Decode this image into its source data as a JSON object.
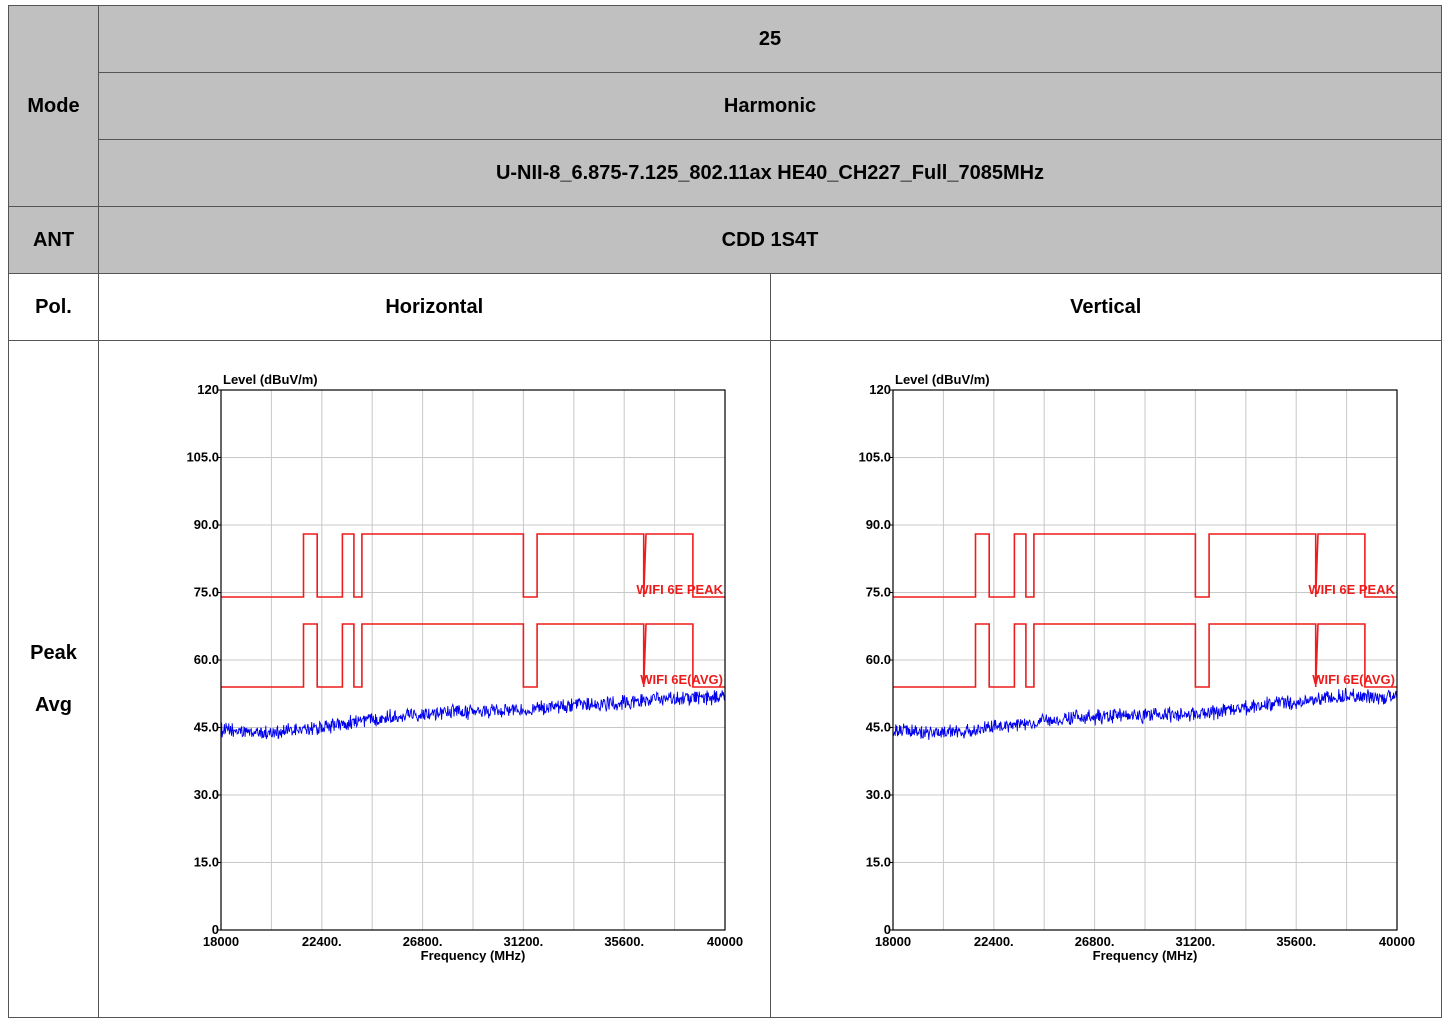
{
  "header": {
    "mode_label": "Mode",
    "mode_row1": "25",
    "mode_row2": "Harmonic",
    "mode_row3": "U-NII-8_6.875-7.125_802.11ax HE40_CH227_Full_7085MHz",
    "ant_label": "ANT",
    "ant_value": "CDD 1S4T",
    "pol_label": "Pol.",
    "pol_horizontal": "Horizontal",
    "pol_vertical": "Vertical",
    "detector_peak": "Peak",
    "detector_avg": "Avg"
  },
  "colors": {
    "limit_line": "#ee1c1c",
    "trace": "#0000ee",
    "grid": "#c8c8c8",
    "header_gray": "#c0c0c0"
  },
  "chart_data": [
    {
      "type": "line",
      "ylabel": "Level (dBuV/m)",
      "xlabel": "Frequency (MHz)",
      "xlim": [
        18000,
        40000
      ],
      "ylim": [
        0,
        120
      ],
      "x_tick_labels": [
        "18000",
        "22400.",
        "26800.",
        "31200.",
        "35600.",
        "40000"
      ],
      "y_tick_labels": [
        "0",
        "15.0",
        "30.0",
        "45.0",
        "60.0",
        "75.0",
        "90.0",
        "105.0",
        "120"
      ],
      "grid": true,
      "series": [
        {
          "name": "WIFI 6E PEAK",
          "kind": "limit",
          "x": [
            18000,
            21600,
            21600,
            22200,
            22200,
            23300,
            23300,
            23800,
            23800,
            24150,
            24150,
            24550,
            24550,
            31200,
            31200,
            31800,
            31800,
            36450,
            36450,
            36550,
            36550,
            38600,
            38600,
            40000
          ],
          "y": [
            74,
            74,
            88,
            88,
            74,
            74,
            88,
            88,
            74,
            74,
            88,
            88,
            88,
            88,
            74,
            74,
            88,
            88,
            74,
            88,
            88,
            88,
            74,
            74
          ]
        },
        {
          "name": "WIFI 6E(AVG)",
          "kind": "limit",
          "x": [
            18000,
            21600,
            21600,
            22200,
            22200,
            23300,
            23300,
            23800,
            23800,
            24150,
            24150,
            24550,
            24550,
            31200,
            31200,
            31800,
            31800,
            36450,
            36450,
            36550,
            36550,
            38600,
            38600,
            40000
          ],
          "y": [
            54,
            54,
            68,
            68,
            54,
            54,
            68,
            68,
            54,
            54,
            68,
            68,
            68,
            68,
            54,
            54,
            68,
            68,
            54,
            68,
            68,
            68,
            54,
            54
          ]
        },
        {
          "kind": "trace",
          "x": [
            18000,
            19000,
            20000,
            21000,
            22000,
            23000,
            24000,
            25000,
            26000,
            27000,
            28000,
            29000,
            30000,
            31000,
            32000,
            33000,
            34000,
            35000,
            36000,
            37000,
            38000,
            39000,
            40000
          ],
          "y": [
            44.5,
            44,
            43.8,
            44.2,
            44.8,
            45.5,
            46.5,
            47.2,
            47.8,
            48.2,
            48.5,
            48.3,
            48.8,
            48.9,
            49.3,
            49.6,
            50,
            50.3,
            50.8,
            51.2,
            51.5,
            51.6,
            51.8
          ]
        }
      ]
    },
    {
      "type": "line",
      "ylabel": "Level (dBuV/m)",
      "xlabel": "Frequency (MHz)",
      "xlim": [
        18000,
        40000
      ],
      "ylim": [
        0,
        120
      ],
      "x_tick_labels": [
        "18000",
        "22400.",
        "26800.",
        "31200.",
        "35600.",
        "40000"
      ],
      "y_tick_labels": [
        "0",
        "15.0",
        "30.0",
        "45.0",
        "60.0",
        "75.0",
        "90.0",
        "105.0",
        "120"
      ],
      "grid": true,
      "series": [
        {
          "name": "WIFI 6E PEAK",
          "kind": "limit",
          "x": [
            18000,
            21600,
            21600,
            22200,
            22200,
            23300,
            23300,
            23800,
            23800,
            24150,
            24150,
            24550,
            24550,
            31200,
            31200,
            31800,
            31800,
            36450,
            36450,
            36550,
            36550,
            38600,
            38600,
            40000
          ],
          "y": [
            74,
            74,
            88,
            88,
            74,
            74,
            88,
            88,
            74,
            74,
            88,
            88,
            88,
            88,
            74,
            74,
            88,
            88,
            74,
            88,
            88,
            88,
            74,
            74
          ]
        },
        {
          "name": "WIFI 6E(AVG)",
          "kind": "limit",
          "x": [
            18000,
            21600,
            21600,
            22200,
            22200,
            23300,
            23300,
            23800,
            23800,
            24150,
            24150,
            24550,
            24550,
            31200,
            31200,
            31800,
            31800,
            36450,
            36450,
            36550,
            36550,
            38600,
            38600,
            40000
          ],
          "y": [
            54,
            54,
            68,
            68,
            54,
            54,
            68,
            68,
            54,
            54,
            68,
            68,
            68,
            68,
            54,
            54,
            68,
            68,
            54,
            68,
            68,
            68,
            54,
            54
          ]
        },
        {
          "kind": "trace",
          "x": [
            18000,
            19000,
            20000,
            21000,
            22000,
            23000,
            24000,
            25000,
            26000,
            27000,
            28000,
            29000,
            30000,
            31000,
            32000,
            33000,
            34000,
            35000,
            36000,
            37000,
            38000,
            39000,
            40000
          ],
          "y": [
            44.5,
            44,
            43.8,
            44.2,
            44.8,
            45.5,
            46,
            46.5,
            47,
            47.3,
            47.5,
            47.6,
            47.9,
            47.8,
            48.3,
            49.2,
            49.8,
            50.5,
            50.9,
            51.6,
            52,
            51.7,
            51.8
          ]
        }
      ]
    }
  ]
}
